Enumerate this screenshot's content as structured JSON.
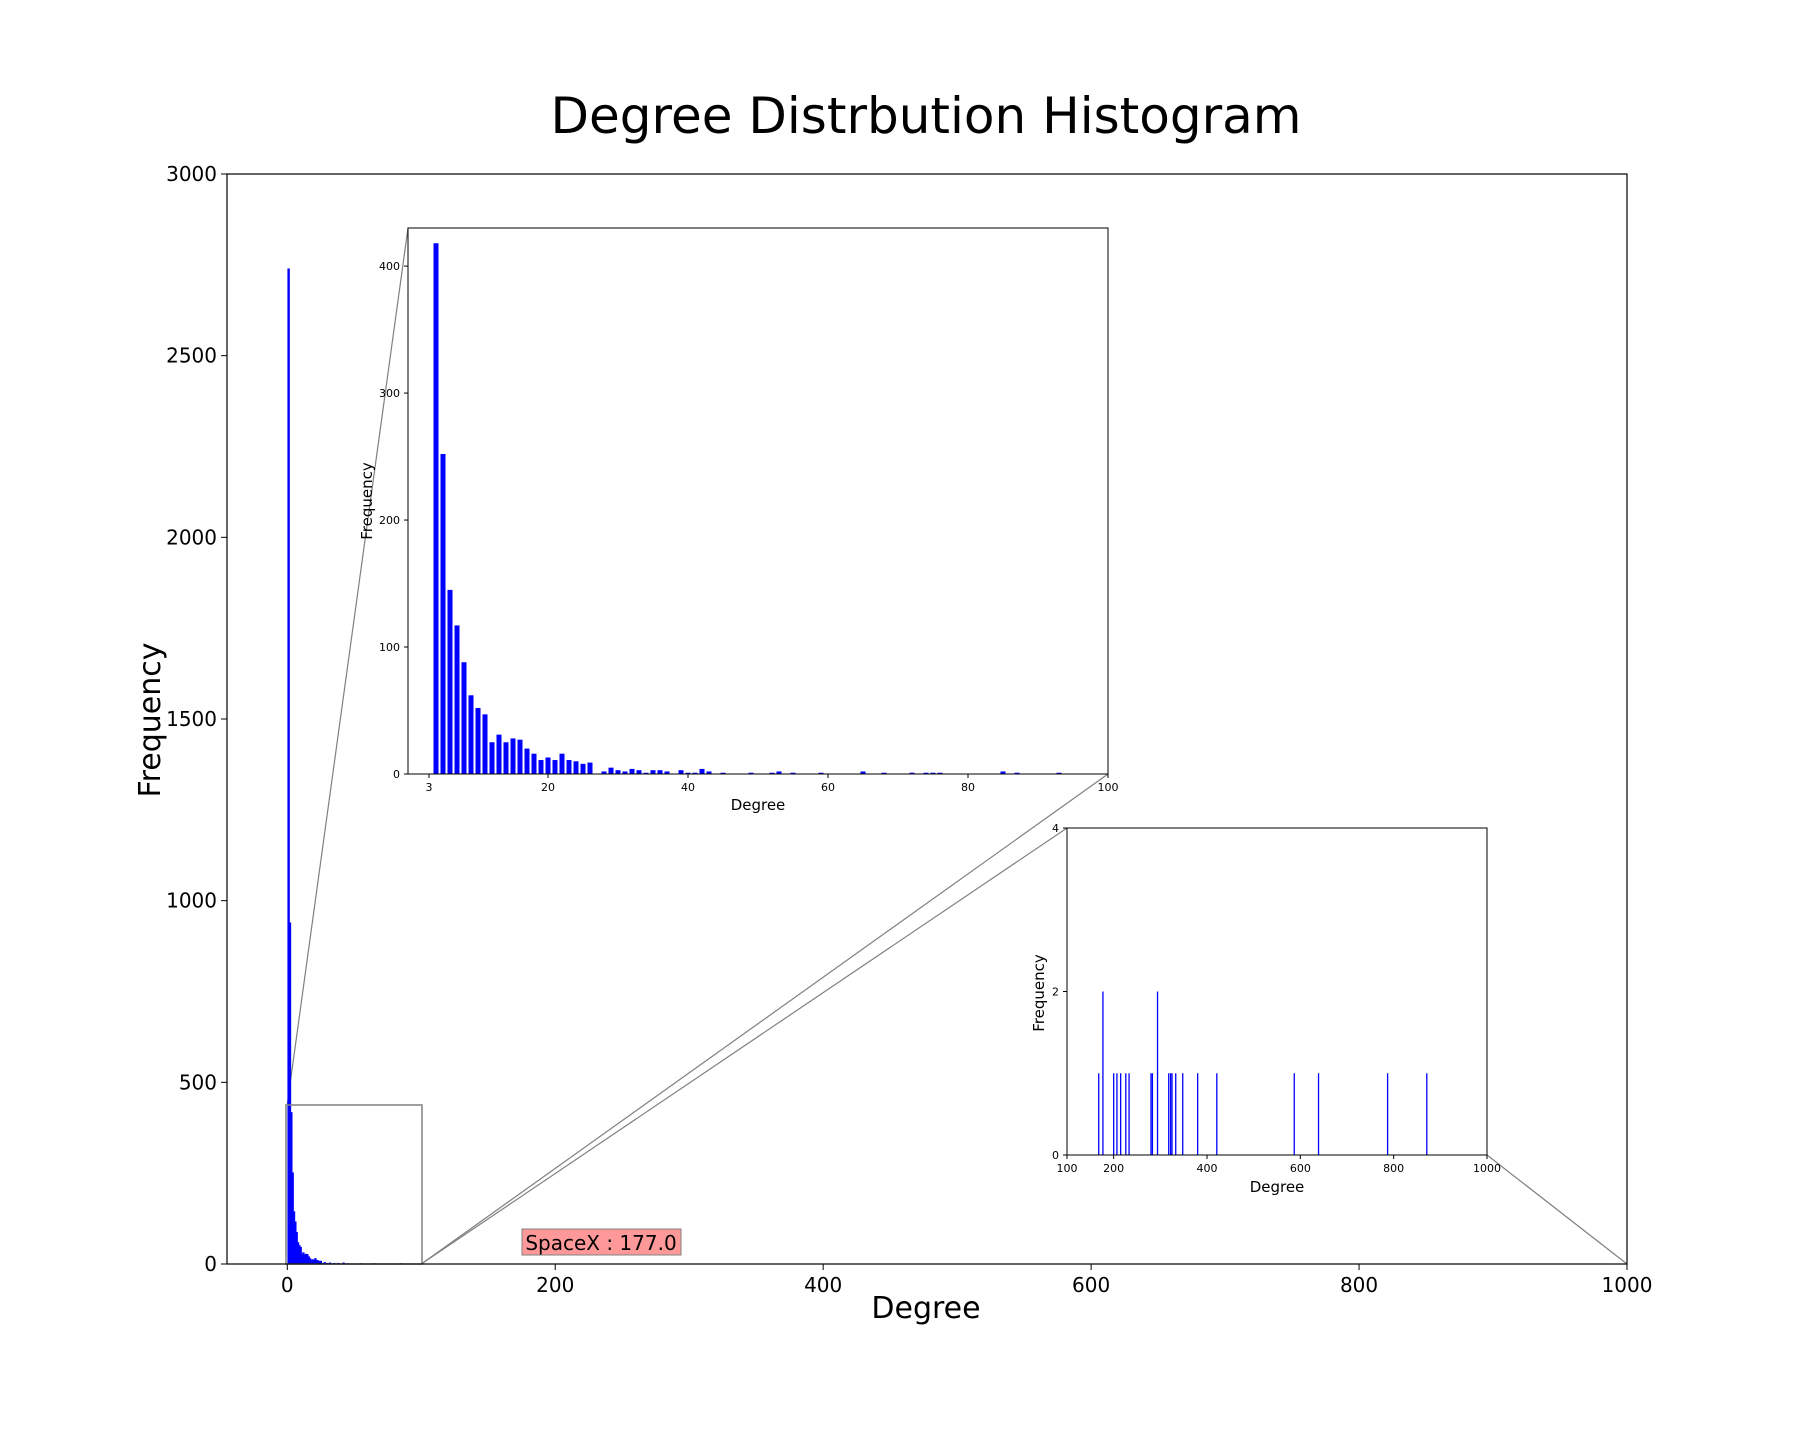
{
  "chart_data": [
    {
      "id": "main",
      "type": "bar",
      "title": "Degree Distrbution Histogram",
      "xlabel": "Degree",
      "ylabel": "Frequency",
      "xlim": [
        -45,
        1000
      ],
      "ylim": [
        0,
        3000
      ],
      "xticks": [
        0,
        200,
        400,
        600,
        800,
        1000
      ],
      "yticks": [
        0,
        500,
        1000,
        1500,
        2000,
        2500,
        3000
      ],
      "bar_color": "#0000ff",
      "x": [
        1,
        2,
        3,
        4,
        5,
        6,
        7,
        8,
        9,
        10,
        11,
        12,
        13,
        14,
        15,
        16,
        17,
        18,
        19,
        20,
        21,
        22,
        23,
        24,
        25,
        26,
        28,
        30,
        32,
        35,
        38,
        42,
        45,
        50,
        55,
        60,
        65,
        75,
        85
      ],
      "values": [
        2740,
        940,
        418,
        252,
        145,
        117,
        88,
        60,
        52,
        47,
        26,
        32,
        26,
        28,
        27,
        21,
        16,
        11,
        13,
        11,
        16,
        11,
        10,
        8,
        9,
        3,
        5,
        3,
        4,
        3,
        3,
        4,
        2,
        1,
        2,
        1,
        2,
        1,
        2
      ],
      "annotation": "SpaceX : 177.0",
      "annotation_bg": "#ff9999",
      "zoom_box": {
        "x": [
          0,
          100
        ],
        "y": [
          0,
          440
        ]
      }
    },
    {
      "id": "inset1",
      "type": "bar",
      "xlabel": "Degree",
      "ylabel": "Frequency",
      "xlim": [
        0,
        100
      ],
      "ylim": [
        0,
        430
      ],
      "xticks": [
        3,
        20,
        40,
        60,
        80,
        100
      ],
      "yticks": [
        0,
        100,
        200,
        300,
        400
      ],
      "bar_color": "#0000ff",
      "x": [
        4,
        5,
        6,
        7,
        8,
        9,
        10,
        11,
        12,
        13,
        14,
        15,
        16,
        17,
        18,
        19,
        20,
        21,
        22,
        23,
        24,
        25,
        26,
        28,
        29,
        30,
        31,
        32,
        33,
        34,
        35,
        36,
        37,
        39,
        40,
        41,
        42,
        43,
        45,
        49,
        52,
        53,
        55,
        59,
        65,
        68,
        72,
        74,
        75,
        76,
        85,
        87,
        93
      ],
      "values": [
        418,
        252,
        145,
        117,
        88,
        62,
        52,
        47,
        25,
        31,
        25,
        28,
        27,
        20,
        16,
        11,
        13,
        11,
        16,
        11,
        10,
        8,
        9,
        2,
        5,
        3,
        2,
        4,
        3,
        1,
        3,
        3,
        2,
        3,
        1,
        1,
        4,
        2,
        1,
        1,
        1,
        2,
        1,
        1,
        2,
        1,
        1,
        1,
        1,
        1,
        2,
        1,
        1
      ]
    },
    {
      "id": "inset2",
      "type": "bar",
      "xlabel": "Degree",
      "ylabel": "Frequency",
      "xlim": [
        100,
        1000
      ],
      "ylim": [
        0,
        4
      ],
      "xticks": [
        100,
        200,
        400,
        600,
        800,
        1000
      ],
      "yticks": [
        0,
        2,
        4
      ],
      "bar_color": "#0000ff",
      "x": [
        168,
        177,
        200,
        207,
        215,
        226,
        233,
        280,
        283,
        294,
        318,
        322,
        325,
        333,
        348,
        380,
        421,
        587,
        639,
        787,
        871
      ],
      "values": [
        1,
        2,
        1,
        1,
        1,
        1,
        1,
        1,
        1,
        2,
        1,
        1,
        1,
        1,
        1,
        1,
        1,
        1,
        1,
        1,
        1
      ]
    }
  ]
}
